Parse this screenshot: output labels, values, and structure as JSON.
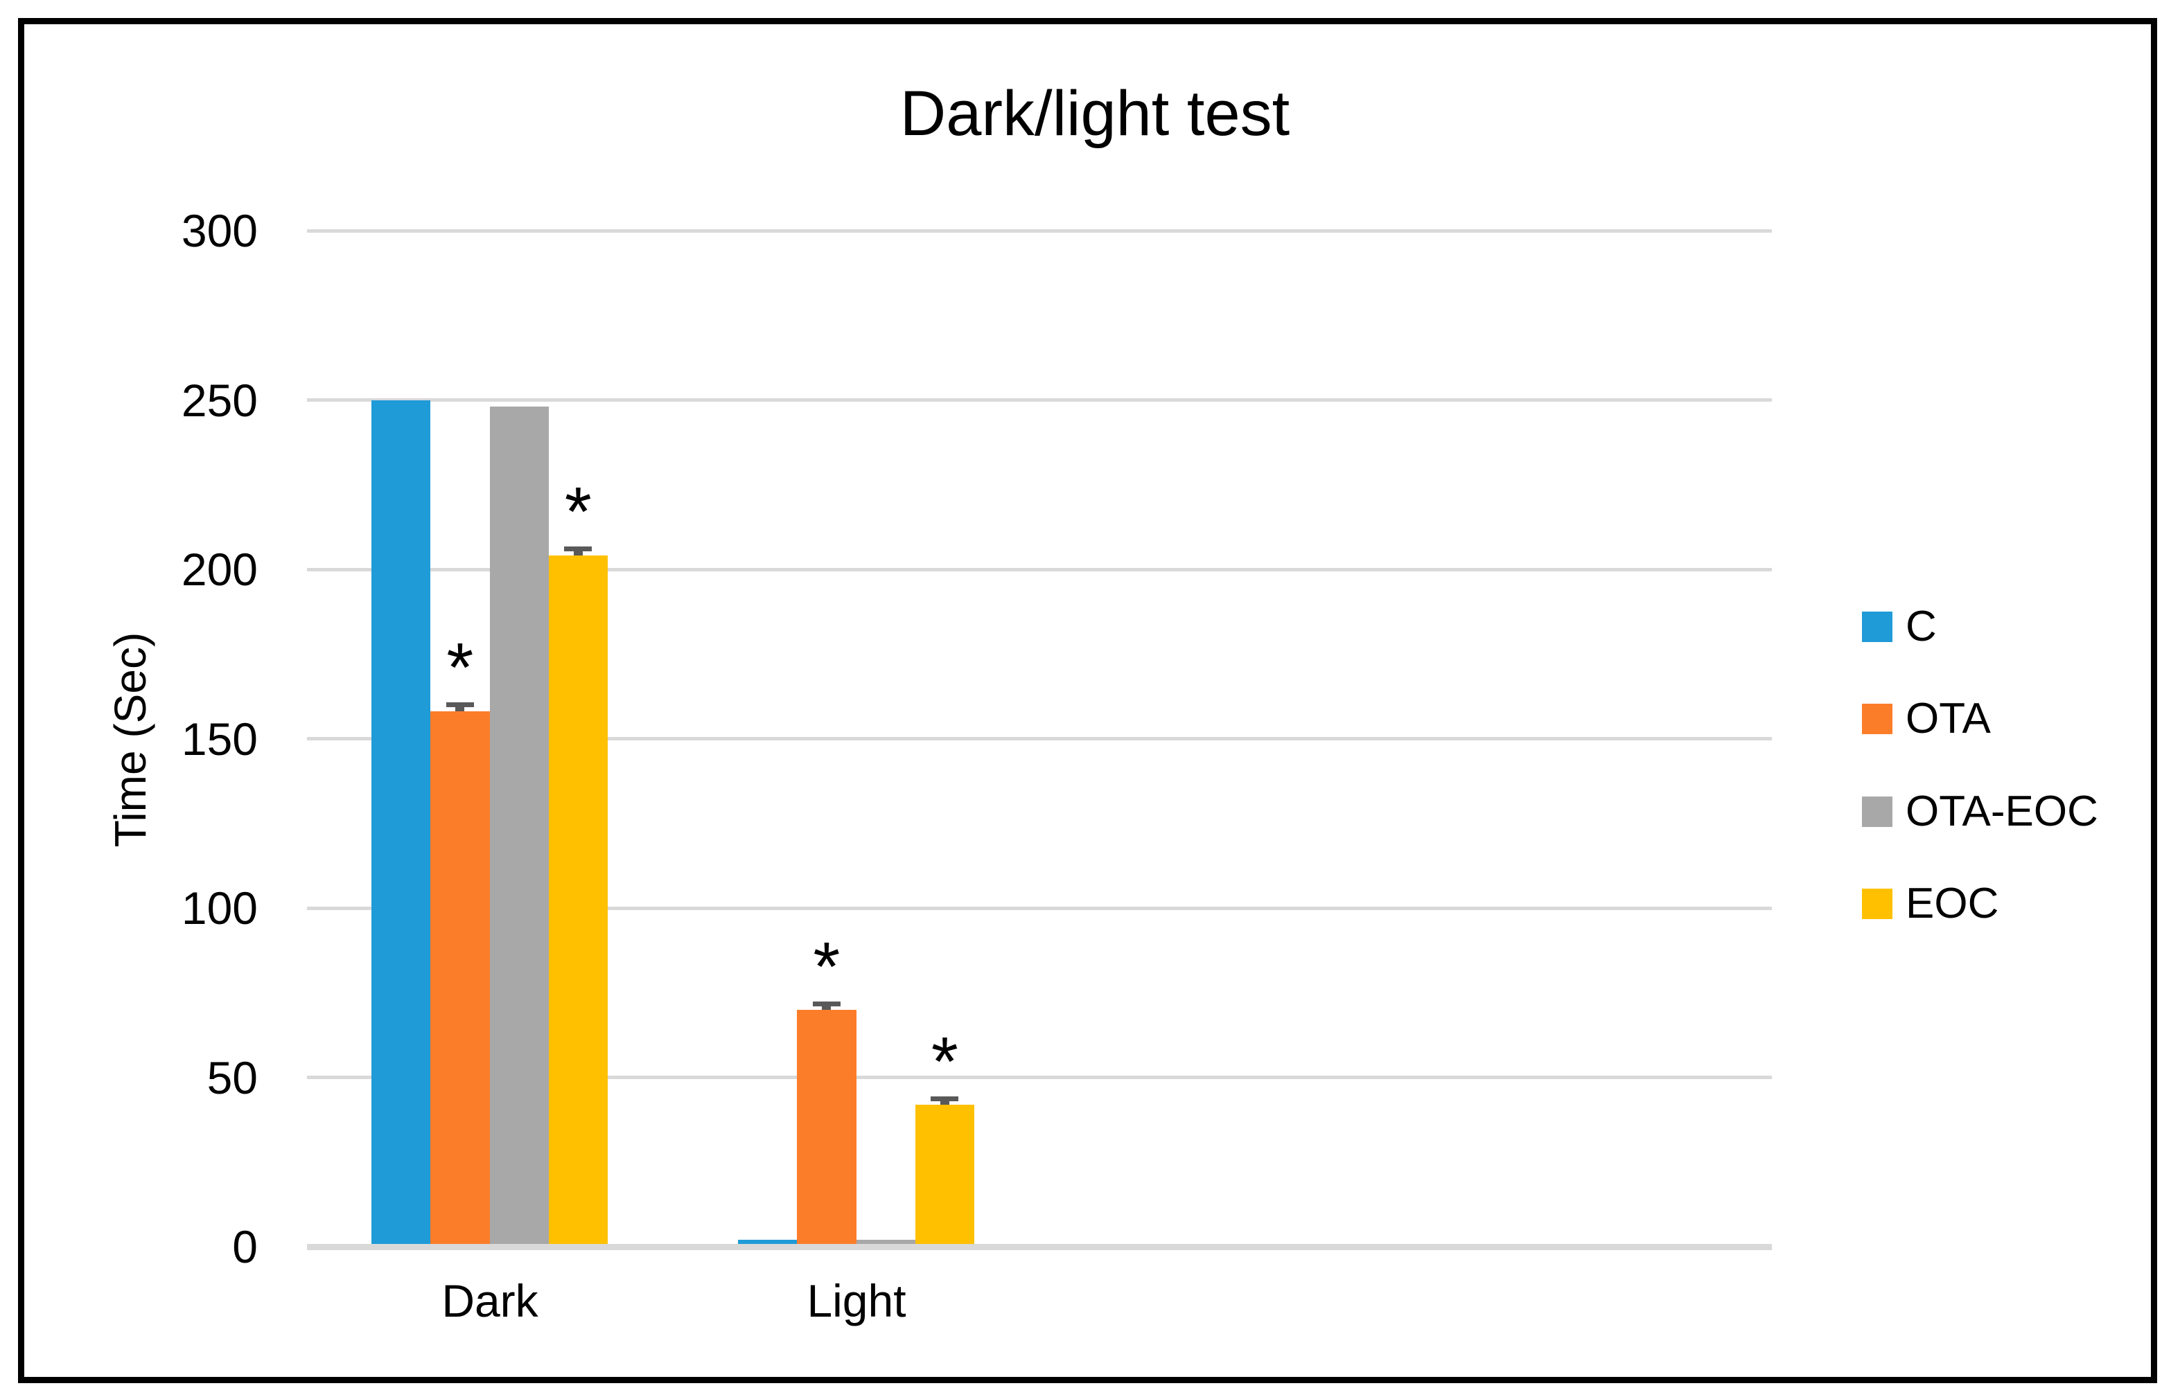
{
  "chart_data": {
    "type": "bar",
    "title": "Dark/light test",
    "ylabel": "Time (Sec)",
    "xlabel": "",
    "categories": [
      "Dark",
      "Light"
    ],
    "series": [
      {
        "name": "C",
        "color": "#1F9BD7",
        "values": [
          250,
          2
        ],
        "errors": [
          0,
          0
        ],
        "significant": [
          false,
          false
        ]
      },
      {
        "name": "OTA",
        "color": "#FC7D29",
        "values": [
          158,
          70
        ],
        "errors": [
          2,
          1.5
        ],
        "significant": [
          true,
          true
        ]
      },
      {
        "name": "OTA-EOC",
        "color": "#A8A8A8",
        "values": [
          248,
          2
        ],
        "errors": [
          0,
          0
        ],
        "significant": [
          false,
          false
        ]
      },
      {
        "name": "EOC",
        "color": "#FFC000",
        "values": [
          204,
          42
        ],
        "errors": [
          2,
          1.5
        ],
        "significant": [
          true,
          true
        ]
      }
    ],
    "ylim": [
      0,
      300
    ],
    "yticks": [
      0,
      50,
      100,
      150,
      200,
      250,
      300
    ],
    "grid": true,
    "legend_position": "right",
    "significance_marker": "*",
    "error_color": "#595959",
    "gridline_color": "#D9D9D9",
    "axis_line_color": "#D9D9D9",
    "text_color": "#000000",
    "frame_color": "#000000",
    "background_color": "#FFFFFF"
  }
}
